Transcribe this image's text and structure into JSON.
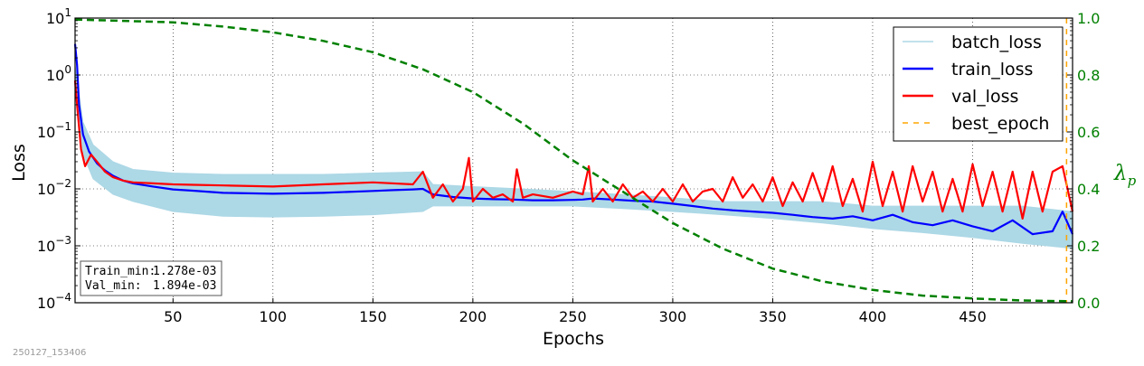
{
  "chart_data": {
    "type": "line",
    "xlabel": "Epochs",
    "ylabel": "Loss",
    "ylabel_right": "λ",
    "ylabel_right_sub": "p",
    "xlim": [
      1,
      500
    ],
    "ylim": [
      0.0001,
      10
    ],
    "yscale": "log",
    "ylim_right": [
      0.0,
      1.0
    ],
    "grid": true,
    "legend_position": "top-right",
    "x_ticks": [
      50,
      100,
      150,
      200,
      250,
      300,
      350,
      400,
      450
    ],
    "y_ticks": [
      {
        "value": 10,
        "base": "10",
        "exp": "1"
      },
      {
        "value": 1,
        "base": "10",
        "exp": "0"
      },
      {
        "value": 0.1,
        "base": "10",
        "exp": "−1"
      },
      {
        "value": 0.01,
        "base": "10",
        "exp": "−2"
      },
      {
        "value": 0.001,
        "base": "10",
        "exp": "−3"
      },
      {
        "value": 0.0001,
        "base": "10",
        "exp": "−4"
      }
    ],
    "y_ticks_right": [
      {
        "value": 0.0,
        "label": "0.0"
      },
      {
        "value": 0.2,
        "label": "0.2"
      },
      {
        "value": 0.4,
        "label": "0.4"
      },
      {
        "value": 0.6,
        "label": "0.6"
      },
      {
        "value": 0.8,
        "label": "0.8"
      },
      {
        "value": 1.0,
        "label": "1.0"
      }
    ],
    "series": [
      {
        "name": "batch_loss",
        "color": "#add8e6",
        "style": "band",
        "x": [
          1,
          5,
          10,
          20,
          30,
          50,
          75,
          100,
          125,
          150,
          175,
          180,
          200,
          225,
          250,
          275,
          300,
          325,
          350,
          375,
          400,
          425,
          450,
          475,
          500
        ],
        "upper": [
          1.5,
          0.15,
          0.06,
          0.03,
          0.022,
          0.019,
          0.018,
          0.018,
          0.018,
          0.019,
          0.02,
          0.012,
          0.011,
          0.01,
          0.009,
          0.008,
          0.007,
          0.006,
          0.006,
          0.006,
          0.005,
          0.005,
          0.005,
          0.005,
          0.004
        ],
        "lower": [
          0.8,
          0.04,
          0.015,
          0.008,
          0.006,
          0.004,
          0.0033,
          0.0032,
          0.0033,
          0.0035,
          0.004,
          0.005,
          0.005,
          0.005,
          0.005,
          0.0045,
          0.004,
          0.0035,
          0.003,
          0.0025,
          0.002,
          0.0017,
          0.0014,
          0.0011,
          0.0009
        ]
      },
      {
        "name": "train_loss",
        "color": "#0000ff",
        "style": "solid",
        "x": [
          1,
          2,
          3,
          5,
          8,
          12,
          16,
          20,
          25,
          30,
          40,
          50,
          60,
          75,
          100,
          125,
          150,
          160,
          170,
          175,
          180,
          190,
          200,
          210,
          220,
          230,
          240,
          250,
          255,
          260,
          270,
          280,
          290,
          300,
          310,
          320,
          330,
          340,
          350,
          360,
          370,
          380,
          390,
          400,
          410,
          420,
          430,
          440,
          450,
          460,
          470,
          480,
          490,
          495,
          500
        ],
        "y": [
          3.5,
          1.5,
          0.3,
          0.09,
          0.045,
          0.028,
          0.021,
          0.017,
          0.014,
          0.0125,
          0.011,
          0.0098,
          0.0093,
          0.0085,
          0.0082,
          0.0085,
          0.0092,
          0.0095,
          0.0098,
          0.01,
          0.008,
          0.0072,
          0.0068,
          0.0066,
          0.0065,
          0.0063,
          0.0063,
          0.0064,
          0.0065,
          0.0068,
          0.0065,
          0.0062,
          0.006,
          0.0055,
          0.005,
          0.0045,
          0.0042,
          0.004,
          0.0038,
          0.0035,
          0.0032,
          0.003,
          0.0033,
          0.0028,
          0.0035,
          0.0026,
          0.0023,
          0.0028,
          0.0022,
          0.0018,
          0.0028,
          0.0016,
          0.0018,
          0.004,
          0.0016
        ]
      },
      {
        "name": "val_loss",
        "color": "#ff0000",
        "style": "solid",
        "x": [
          1,
          2,
          4,
          6,
          9,
          12,
          16,
          20,
          25,
          30,
          40,
          50,
          60,
          75,
          100,
          125,
          150,
          170,
          175,
          180,
          185,
          190,
          195,
          198,
          200,
          205,
          210,
          215,
          220,
          222,
          225,
          230,
          240,
          250,
          255,
          258,
          260,
          265,
          270,
          275,
          280,
          285,
          290,
          295,
          300,
          305,
          310,
          315,
          320,
          325,
          330,
          335,
          340,
          345,
          350,
          355,
          360,
          365,
          370,
          375,
          380,
          385,
          390,
          395,
          400,
          405,
          410,
          415,
          420,
          425,
          430,
          435,
          440,
          445,
          450,
          455,
          460,
          465,
          470,
          475,
          480,
          485,
          490,
          495,
          500
        ],
        "y": [
          0.8,
          0.3,
          0.05,
          0.025,
          0.04,
          0.03,
          0.02,
          0.016,
          0.014,
          0.013,
          0.0125,
          0.012,
          0.0118,
          0.0115,
          0.011,
          0.012,
          0.013,
          0.012,
          0.02,
          0.007,
          0.012,
          0.006,
          0.01,
          0.035,
          0.006,
          0.01,
          0.007,
          0.008,
          0.006,
          0.022,
          0.007,
          0.008,
          0.007,
          0.009,
          0.008,
          0.025,
          0.006,
          0.01,
          0.006,
          0.012,
          0.007,
          0.009,
          0.006,
          0.01,
          0.006,
          0.012,
          0.006,
          0.009,
          0.01,
          0.006,
          0.016,
          0.007,
          0.012,
          0.006,
          0.016,
          0.005,
          0.013,
          0.006,
          0.019,
          0.006,
          0.025,
          0.005,
          0.015,
          0.004,
          0.03,
          0.005,
          0.02,
          0.004,
          0.025,
          0.006,
          0.02,
          0.004,
          0.015,
          0.004,
          0.027,
          0.005,
          0.02,
          0.004,
          0.02,
          0.003,
          0.02,
          0.004,
          0.02,
          0.025,
          0.004
        ]
      },
      {
        "name": "best_epoch",
        "color": "#ffa500",
        "style": "dashed-vertical",
        "x_value": 497
      },
      {
        "name": "λp",
        "color": "#008000",
        "style": "dashed",
        "axis": "right",
        "x": [
          1,
          25,
          50,
          75,
          100,
          125,
          150,
          175,
          200,
          225,
          250,
          275,
          300,
          325,
          350,
          375,
          400,
          425,
          450,
          475,
          500
        ],
        "y": [
          0.995,
          0.99,
          0.985,
          0.97,
          0.95,
          0.92,
          0.88,
          0.82,
          0.74,
          0.63,
          0.5,
          0.39,
          0.28,
          0.19,
          0.12,
          0.075,
          0.045,
          0.025,
          0.015,
          0.008,
          0.005
        ]
      }
    ],
    "annotation": {
      "train_label": "Train_min:",
      "train_value": "1.278e-03",
      "val_label": "Val_min:",
      "val_value": "1.894e-03"
    }
  },
  "timestamp": "250127_153406"
}
